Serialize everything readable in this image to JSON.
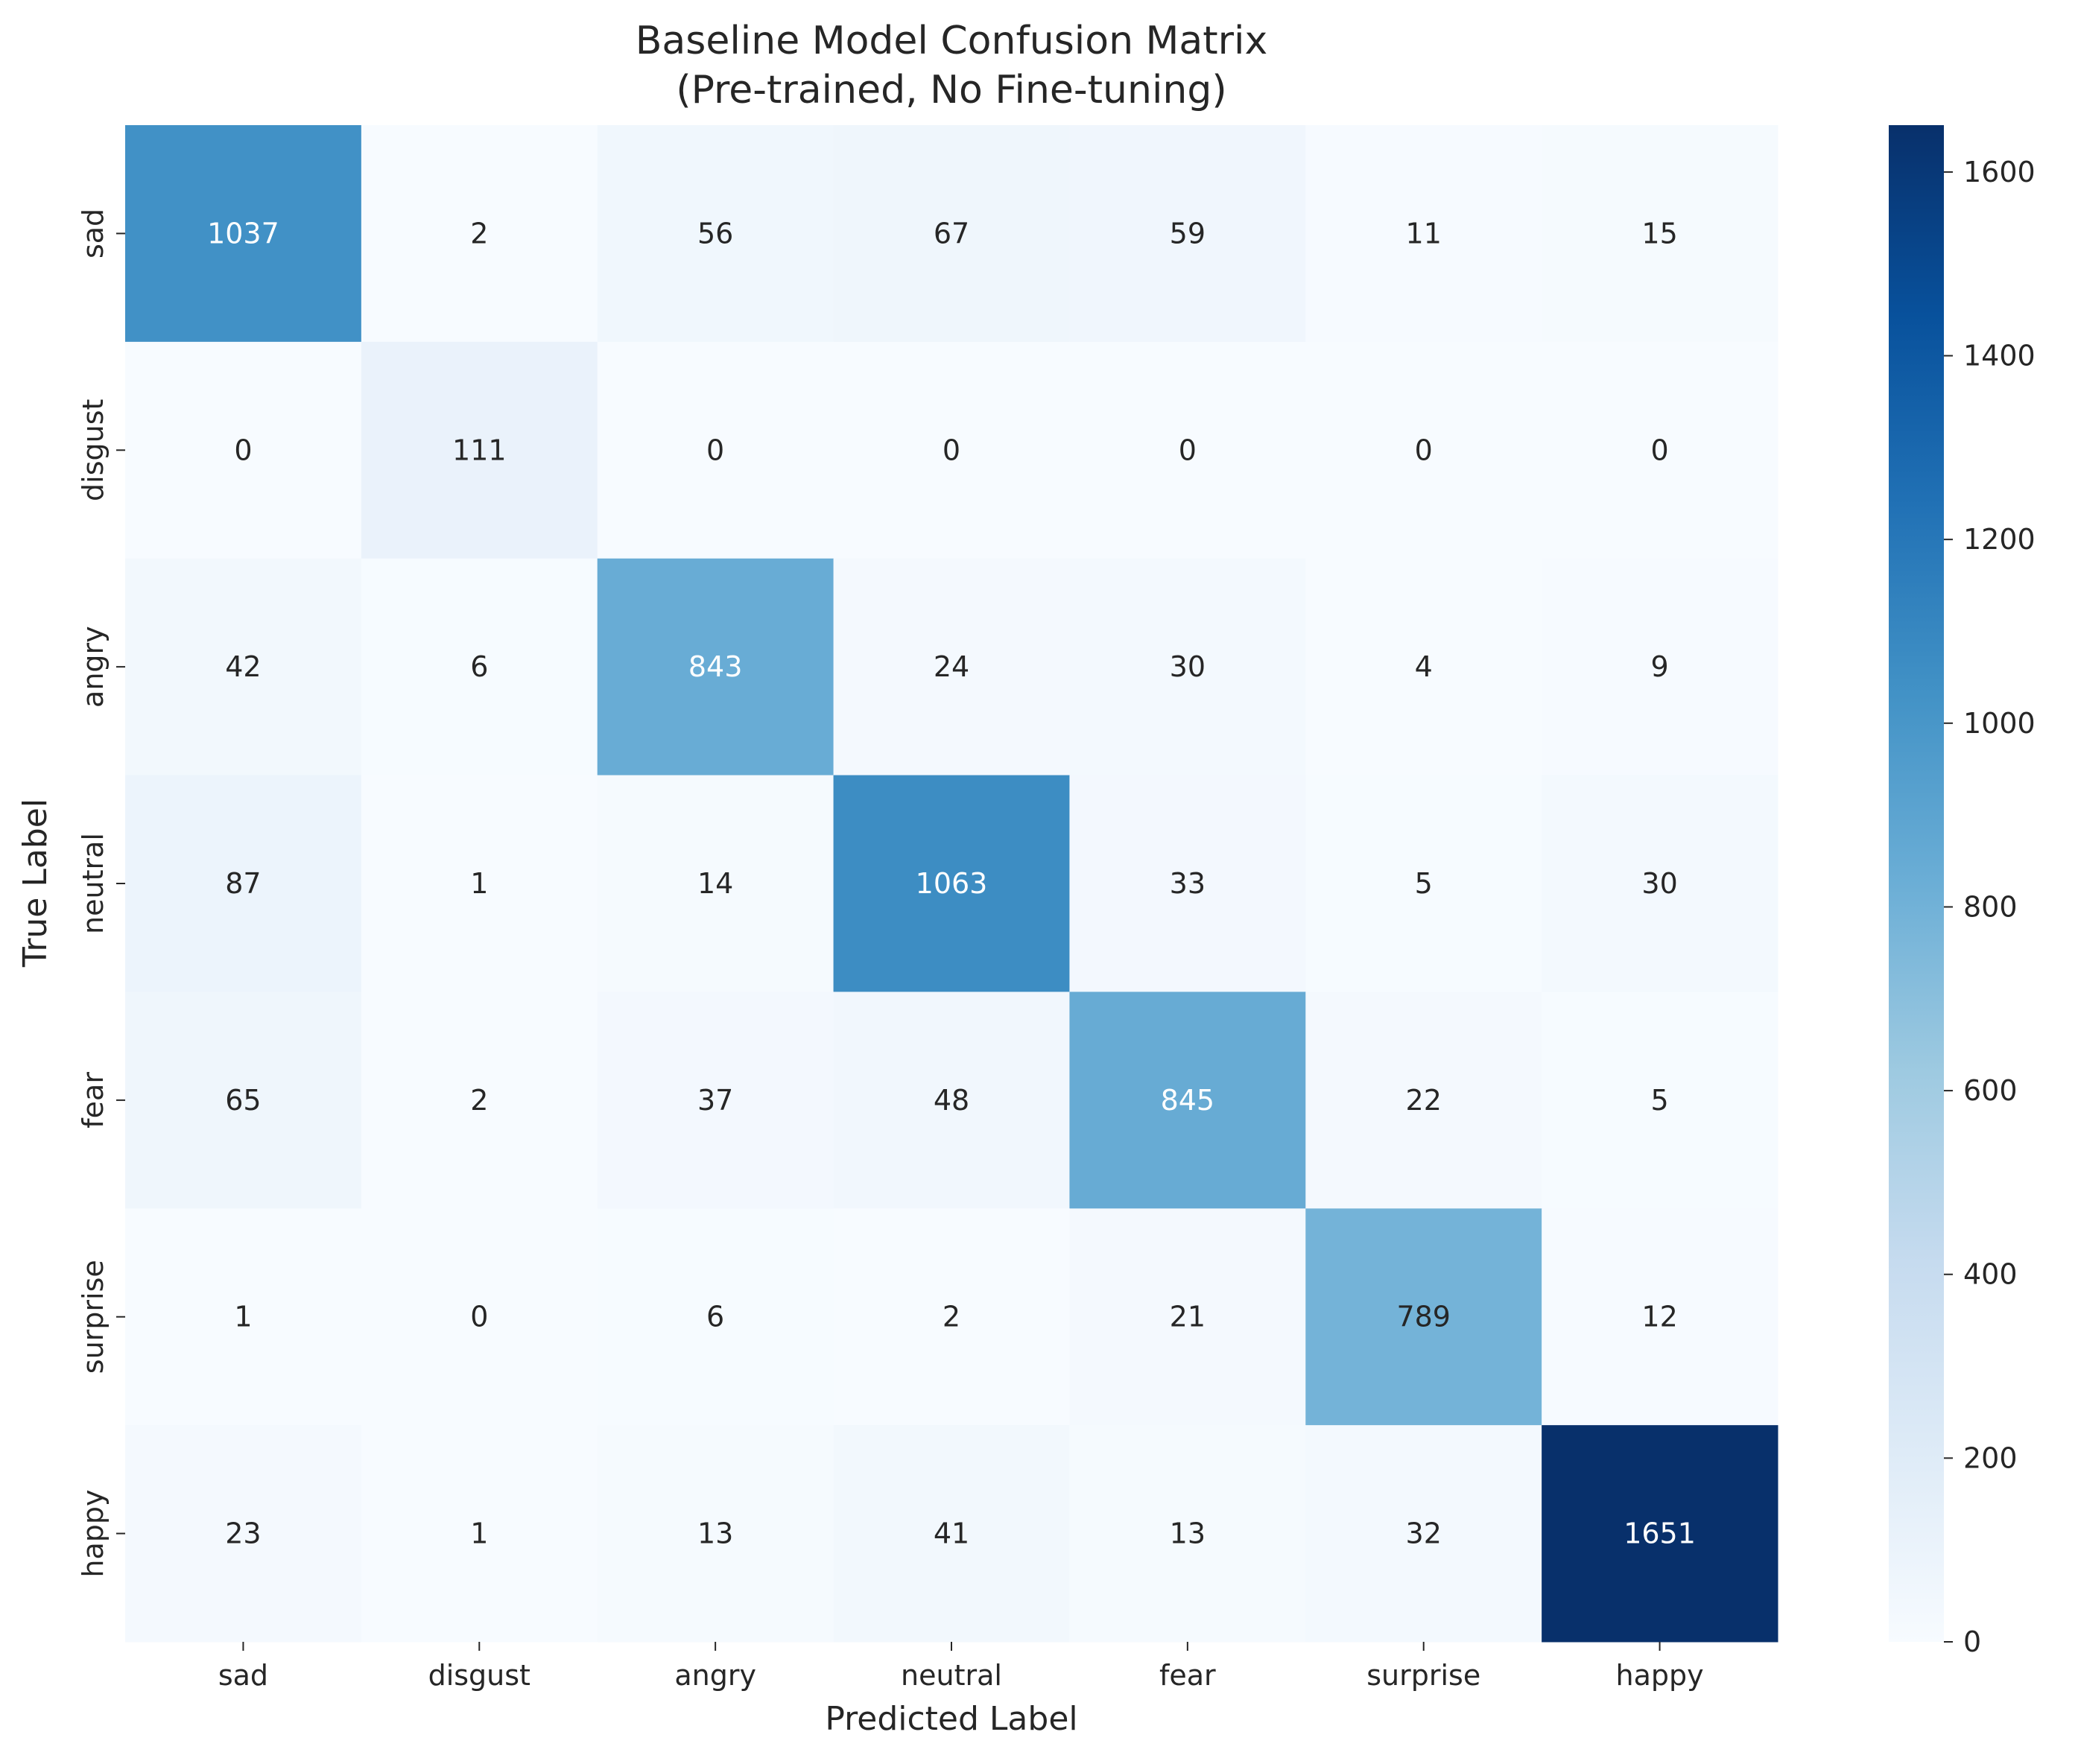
{
  "chart_data": {
    "type": "heatmap",
    "title": [
      "Baseline Model Confusion Matrix",
      "(Pre-trained, No Fine-tuning)"
    ],
    "xlabel": "Predicted Label",
    "ylabel": "True Label",
    "x_categories": [
      "sad",
      "disgust",
      "angry",
      "neutral",
      "fear",
      "surprise",
      "happy"
    ],
    "y_categories": [
      "sad",
      "disgust",
      "angry",
      "neutral",
      "fear",
      "surprise",
      "happy"
    ],
    "values": [
      [
        1037,
        2,
        56,
        67,
        59,
        11,
        15
      ],
      [
        0,
        111,
        0,
        0,
        0,
        0,
        0
      ],
      [
        42,
        6,
        843,
        24,
        30,
        4,
        9
      ],
      [
        87,
        1,
        14,
        1063,
        33,
        5,
        30
      ],
      [
        65,
        2,
        37,
        48,
        845,
        22,
        5
      ],
      [
        1,
        0,
        6,
        2,
        21,
        789,
        12
      ],
      [
        23,
        1,
        13,
        41,
        13,
        32,
        1651
      ]
    ],
    "colormap": "Blues",
    "colorbar": {
      "min": 0,
      "max": 1651,
      "ticks": [
        0,
        200,
        400,
        600,
        800,
        1000,
        1200,
        1400,
        1600
      ]
    },
    "grid": false,
    "legend": "colorbar-right"
  }
}
